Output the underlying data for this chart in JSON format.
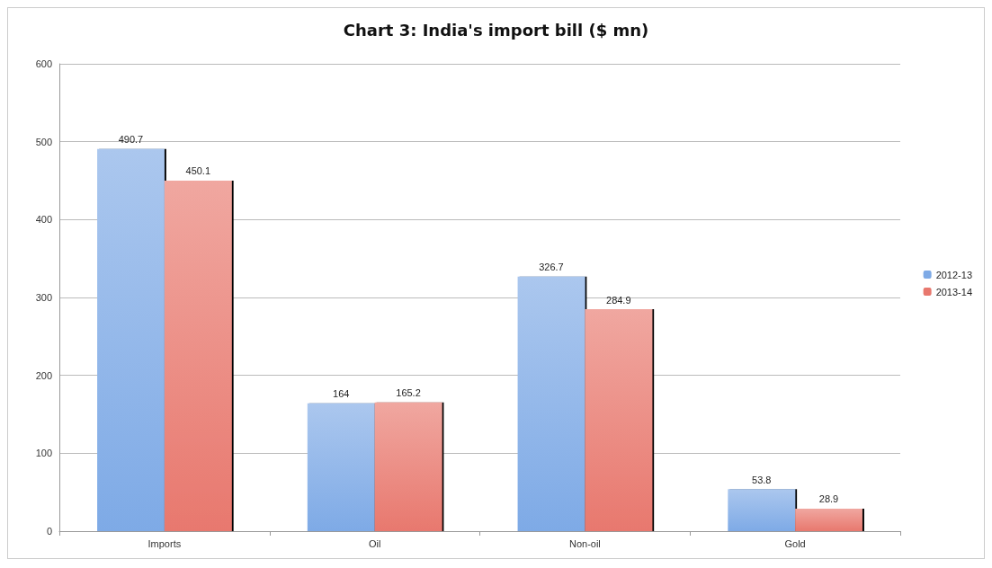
{
  "chart_data": {
    "type": "bar",
    "title": "Chart 3: India's import bill ($ mn)",
    "categories": [
      "Imports",
      "Oil",
      "Non-oil",
      "Gold"
    ],
    "series": [
      {
        "name": "2012-13",
        "color": "#7eaae6",
        "values": [
          490.7,
          164,
          326.7,
          53.8
        ]
      },
      {
        "name": "2013-14",
        "color": "#e8786e",
        "values": [
          450.1,
          165.2,
          284.9,
          28.9
        ]
      }
    ],
    "ylim": [
      0,
      600
    ],
    "yticks": [
      0,
      100,
      200,
      300,
      400,
      500,
      600
    ],
    "grid": "y",
    "legend": "right",
    "data_labels": true
  }
}
